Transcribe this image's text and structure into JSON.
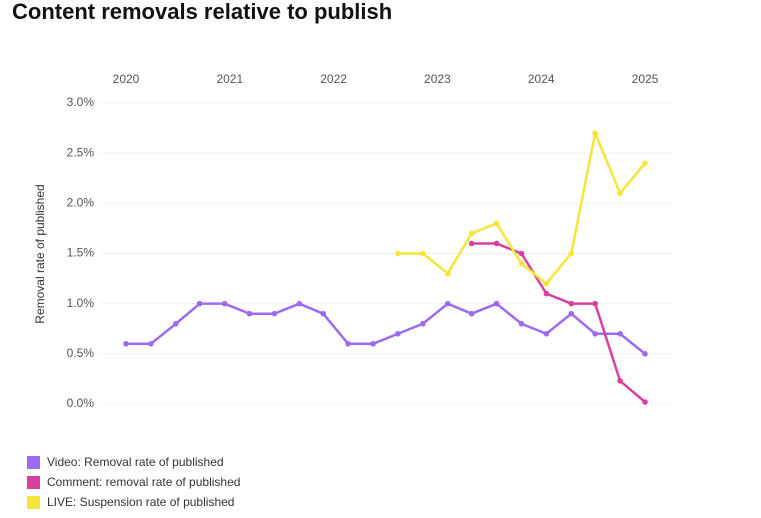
{
  "chart_data": {
    "type": "line",
    "title": "Content removals relative to publish",
    "y_label": "Removal rate of published",
    "x": [
      2020,
      2020.24,
      2020.48,
      2020.71,
      2020.95,
      2021.19,
      2021.43,
      2021.67,
      2021.9,
      2022.14,
      2022.38,
      2022.62,
      2022.86,
      2023.1,
      2023.33,
      2023.57,
      2023.81,
      2024.05,
      2024.29,
      2024.52,
      2024.76,
      2025
    ],
    "xlim": [
      2020,
      2025
    ],
    "xticks": [
      2020,
      2021,
      2022,
      2023,
      2024,
      2025
    ],
    "ylim": [
      0,
      3
    ],
    "yticks": [
      {
        "value": 0,
        "label": "0.0%"
      },
      {
        "value": 0.5,
        "label": "0.5%"
      },
      {
        "value": 1,
        "label": "1.0%"
      },
      {
        "value": 1.5,
        "label": "1.5%"
      },
      {
        "value": 2,
        "label": "2.0%"
      },
      {
        "value": 2.5,
        "label": "2.5%"
      },
      {
        "value": 3,
        "label": "3.0%"
      }
    ],
    "grid": true,
    "legend": "bottom-left",
    "series": [
      {
        "name": "Video: Removal rate of published",
        "color": "#9b6bf0",
        "values": [
          0.6,
          0.6,
          0.8,
          1.0,
          1.0,
          0.9,
          0.9,
          1.0,
          0.9,
          0.6,
          0.6,
          0.7,
          0.8,
          1.0,
          0.9,
          1.0,
          0.8,
          0.7,
          0.9,
          0.7,
          0.7,
          0.5
        ]
      },
      {
        "name": "Comment: removal rate of published",
        "color": "#d8409f",
        "values": [
          null,
          null,
          null,
          null,
          null,
          null,
          null,
          null,
          null,
          null,
          null,
          null,
          null,
          null,
          1.6,
          1.6,
          1.5,
          1.1,
          1.0,
          1.0,
          0.23,
          0.02
        ]
      },
      {
        "name": "LIVE: Suspension rate of published",
        "color": "#f4e636",
        "values": [
          null,
          null,
          null,
          null,
          null,
          null,
          null,
          null,
          null,
          null,
          null,
          1.5,
          1.5,
          1.3,
          1.7,
          1.8,
          1.4,
          1.2,
          1.5,
          2.7,
          2.1,
          2.4
        ]
      }
    ]
  }
}
